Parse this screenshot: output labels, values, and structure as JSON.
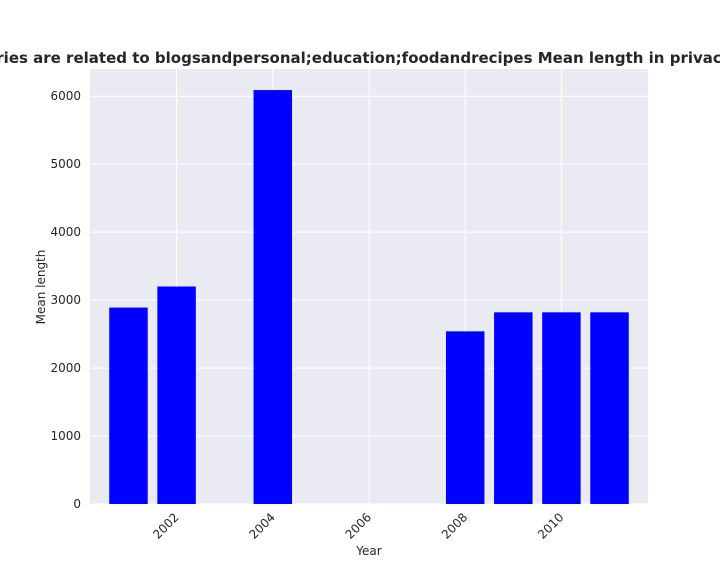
{
  "chart_data": {
    "type": "bar",
    "title": "Categories are related to blogsandpersonal;education;foodandrecipes Mean length in privacy policies",
    "xlabel": "Year",
    "ylabel": "Mean length",
    "x": [
      2001,
      2002,
      2004,
      2008,
      2009,
      2010,
      2011
    ],
    "values": [
      2890,
      3200,
      6090,
      2540,
      2820,
      2820,
      2820
    ],
    "xlim": [
      2000.2,
      2011.8
    ],
    "ylim": [
      0,
      6400
    ],
    "xticks": [
      2002,
      2004,
      2006,
      2008,
      2010
    ],
    "xtick_labels": [
      "2002",
      "2004",
      "2006",
      "2008",
      "2010"
    ],
    "yticks": [
      0,
      1000,
      2000,
      3000,
      4000,
      5000,
      6000
    ],
    "ytick_labels": [
      "0",
      "1000",
      "2000",
      "3000",
      "4000",
      "5000",
      "6000"
    ],
    "grid": true,
    "colors": {
      "bar": "#0000ff",
      "plot_background": "#eaeaf2",
      "grid": "#ffffff"
    }
  }
}
